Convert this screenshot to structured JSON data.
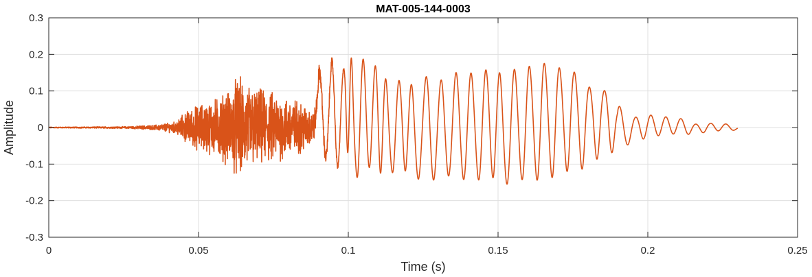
{
  "chart_data": {
    "type": "line",
    "title": "MAT-005-144-0003",
    "xlabel": "Time (s)",
    "ylabel": "Amplitude",
    "xlim": [
      0,
      0.25
    ],
    "ylim": [
      -0.3,
      0.3
    ],
    "xticks": [
      0,
      0.05,
      0.1,
      0.15,
      0.2,
      0.25
    ],
    "xtick_labels": [
      "0",
      "0.05",
      "0.1",
      "0.15",
      "0.2",
      "0.25"
    ],
    "yticks": [
      -0.3,
      -0.2,
      -0.1,
      0,
      0.1,
      0.2,
      0.3
    ],
    "ytick_labels": [
      "-0.3",
      "-0.2",
      "-0.1",
      "0",
      "0.1",
      "0.2",
      "0.3"
    ],
    "grid": true,
    "series": [
      {
        "color": "#D95319",
        "t_end": 0.23,
        "burst_envelope": [
          [
            0,
            0.001
          ],
          [
            0.025,
            0.002
          ],
          [
            0.035,
            0.005
          ],
          [
            0.042,
            0.012
          ],
          [
            0.046,
            0.035
          ],
          [
            0.05,
            0.05
          ],
          [
            0.055,
            0.06
          ],
          [
            0.06,
            0.08
          ],
          [
            0.063,
            0.11
          ],
          [
            0.067,
            0.09
          ],
          [
            0.072,
            0.08
          ],
          [
            0.078,
            0.07
          ],
          [
            0.083,
            0.06
          ],
          [
            0.088,
            0.04
          ],
          [
            0.09,
            0.02
          ],
          [
            0.095,
            0.01
          ],
          [
            0.1,
            0.0
          ]
        ],
        "cycles": [
          [
            0.0905,
            0.15,
            -0.1
          ],
          [
            0.0945,
            0.18,
            -0.12
          ],
          [
            0.0985,
            0.17,
            -0.13
          ],
          [
            0.101,
            0.2,
            -0.14
          ],
          [
            0.105,
            0.19,
            -0.13
          ],
          [
            0.109,
            0.17,
            -0.14
          ],
          [
            0.1125,
            0.14,
            -0.13
          ],
          [
            0.117,
            0.13,
            -0.14
          ],
          [
            0.121,
            0.12,
            -0.15
          ],
          [
            0.126,
            0.14,
            -0.16
          ],
          [
            0.131,
            0.13,
            -0.15
          ],
          [
            0.136,
            0.15,
            -0.16
          ],
          [
            0.141,
            0.15,
            -0.16
          ],
          [
            0.146,
            0.16,
            -0.16
          ],
          [
            0.1505,
            0.15,
            -0.17
          ],
          [
            0.1555,
            0.16,
            -0.16
          ],
          [
            0.1605,
            0.17,
            -0.16
          ],
          [
            0.1655,
            0.18,
            -0.15
          ],
          [
            0.1705,
            0.17,
            -0.13
          ],
          [
            0.1755,
            0.16,
            -0.12
          ],
          [
            0.1805,
            0.12,
            -0.09
          ],
          [
            0.1855,
            0.11,
            -0.07
          ],
          [
            0.1905,
            0.06,
            -0.05
          ],
          [
            0.196,
            0.03,
            -0.035
          ],
          [
            0.201,
            0.035,
            -0.025
          ],
          [
            0.206,
            0.03,
            -0.02
          ],
          [
            0.211,
            0.025,
            -0.02
          ],
          [
            0.216,
            0.01,
            -0.015
          ],
          [
            0.221,
            0.012,
            -0.01
          ],
          [
            0.226,
            0.01,
            -0.008
          ]
        ]
      }
    ]
  }
}
